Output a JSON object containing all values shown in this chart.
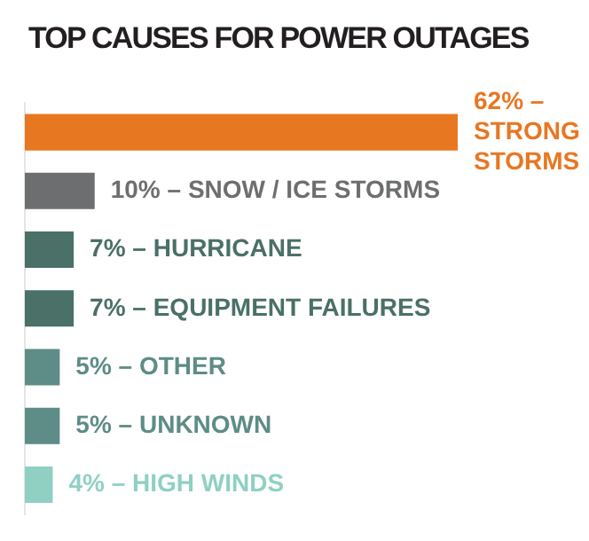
{
  "chart_data": {
    "type": "bar",
    "orientation": "horizontal",
    "title": "TOP CAUSES FOR POWER OUTAGES",
    "categories": [
      null,
      null,
      null,
      null,
      null,
      null,
      null
    ],
    "values": [
      62,
      10,
      7,
      7,
      5,
      5,
      4
    ],
    "colors": [
      "#e87722",
      "#6d6e70",
      "#4a7068",
      "#4a7068",
      "#5e8c86",
      "#5e8c86",
      "#8fd0c3"
    ],
    "value_labels": [
      "62% – STRONG STORMS",
      "10% – SNOW / ICE STORMS",
      "7% – HURRICANE",
      "7% – EQUIPMENT FAILURES",
      "5% – OTHER",
      "5% – UNKNOWN",
      "4% – HIGH WINDS"
    ],
    "legend": false
  }
}
